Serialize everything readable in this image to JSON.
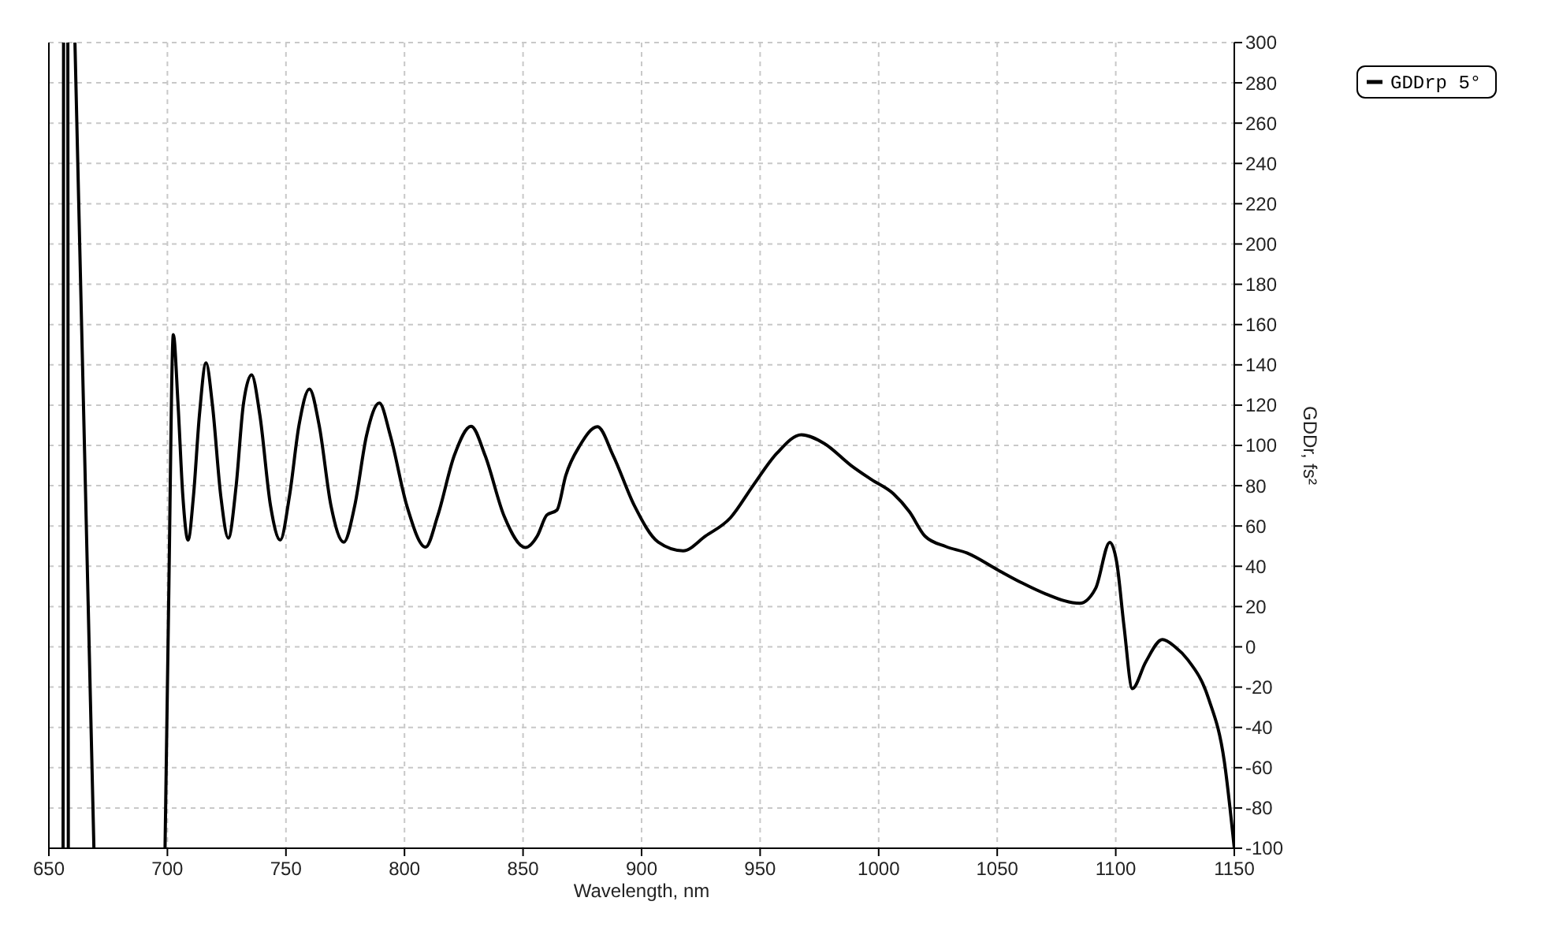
{
  "chart_data": {
    "type": "line",
    "xlabel": "Wavelength, nm",
    "ylabel": "GDDr, fs²",
    "xlim": [
      650,
      1150
    ],
    "ylim": [
      -100,
      300
    ],
    "xticks": [
      650,
      700,
      750,
      800,
      850,
      900,
      950,
      1000,
      1050,
      1100,
      1150
    ],
    "yticks": [
      -100,
      -80,
      -60,
      -40,
      -20,
      0,
      20,
      40,
      60,
      80,
      100,
      120,
      140,
      160,
      180,
      200,
      220,
      240,
      260,
      280,
      300
    ],
    "grid": true,
    "legend": "top right",
    "line_style": "solid",
    "marker": "none",
    "series": [
      {
        "name": "GDDrp 5°",
        "color": "#000000",
        "x": [
          656,
          656.2,
          656.3,
          658,
          658.2,
          658.3,
          661,
          669,
          669.1,
          699,
          700.5,
          702.5,
          704.5,
          706.5,
          708.7,
          711,
          713.5,
          716.3,
          719,
          722.5,
          725.7,
          729,
          732,
          735.5,
          739,
          743.5,
          747.6,
          751.5,
          755.5,
          759.9,
          764,
          769,
          774.4,
          779,
          784,
          789.4,
          794,
          801,
          808.9,
          814,
          821,
          828.1,
          834,
          842,
          851,
          856,
          860,
          864.3,
          868,
          874,
          881.4,
          888,
          897,
          907,
          917.5,
          927,
          937.5,
          947,
          957,
          967.4,
          977,
          988.4,
          997,
          1006.2,
          1013,
          1019.5,
          1028.3,
          1037.2,
          1050.5,
          1060,
          1070.4,
          1084.8,
          1091.5,
          1097.5,
          1100.4,
          1103.5,
          1107,
          1112.6,
          1119.7,
          1125,
          1130.3,
          1139.2,
          1145.8,
          1150
        ],
        "values": [
          -100,
          300,
          null,
          300,
          -100,
          null,
          300,
          -100,
          null,
          -100,
          20,
          155,
          120,
          75,
          53,
          75,
          115,
          141,
          120,
          75,
          54,
          80,
          120,
          135,
          115,
          70,
          53,
          75,
          110,
          128,
          110,
          70,
          52,
          70,
          105,
          121,
          105,
          70,
          49.5,
          65,
          95,
          109.5,
          95,
          65,
          49.3,
          55,
          65.4,
          67.9,
          85,
          100,
          109.3,
          95,
          70,
          52,
          47.7,
          55,
          64.1,
          80,
          96,
          105.3,
          101,
          90,
          83,
          76,
          67,
          55,
          49.8,
          46.6,
          38,
          32,
          26.3,
          21.6,
          29,
          51.9,
          42,
          10,
          -20.7,
          -7.6,
          3.6,
          0,
          -6.3,
          -25.9,
          -57,
          -100
        ]
      }
    ]
  }
}
